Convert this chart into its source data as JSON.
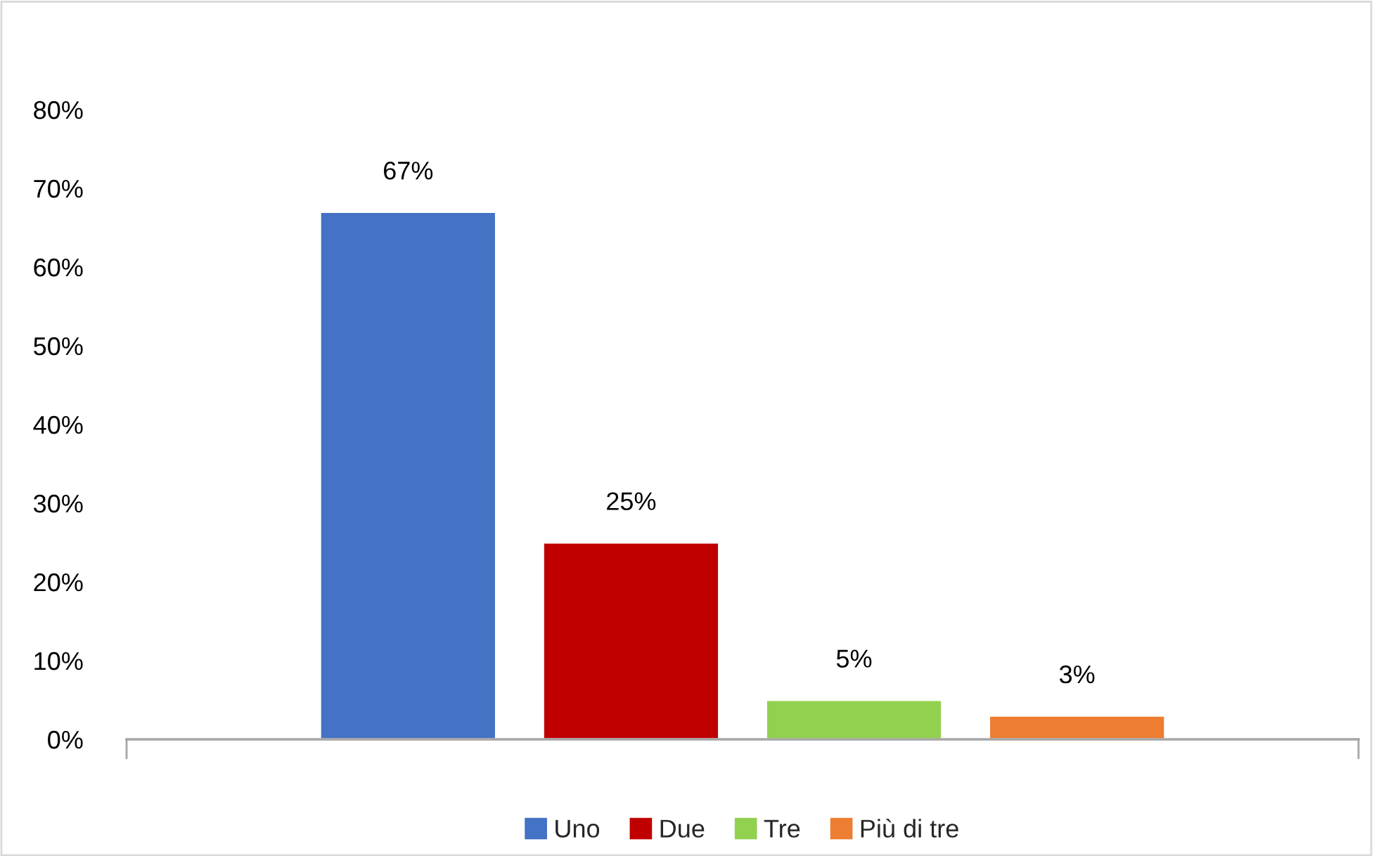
{
  "chart_data": {
    "type": "bar",
    "categories": [
      null
    ],
    "series": [
      {
        "name": "Uno",
        "color": "#4472c4",
        "values": [
          67
        ],
        "value_labels": [
          "67%"
        ]
      },
      {
        "name": "Due",
        "color": "#c00000",
        "values": [
          25
        ],
        "value_labels": [
          "25%"
        ]
      },
      {
        "name": "Tre",
        "color": "#92d050",
        "values": [
          5
        ],
        "value_labels": [
          "5%"
        ]
      },
      {
        "name": "Più di tre",
        "color": "#ed7d31",
        "values": [
          3
        ],
        "value_labels": [
          "3%"
        ]
      }
    ],
    "ylim": [
      0,
      80
    ],
    "yticks": [
      {
        "value": 0,
        "label": "0%"
      },
      {
        "value": 10,
        "label": "10%"
      },
      {
        "value": 20,
        "label": "20%"
      },
      {
        "value": 30,
        "label": "30%"
      },
      {
        "value": 40,
        "label": "40%"
      },
      {
        "value": 50,
        "label": "50%"
      },
      {
        "value": 60,
        "label": "60%"
      },
      {
        "value": 70,
        "label": "70%"
      },
      {
        "value": 80,
        "label": "80%"
      }
    ],
    "legend": "bottom",
    "grid": false
  }
}
